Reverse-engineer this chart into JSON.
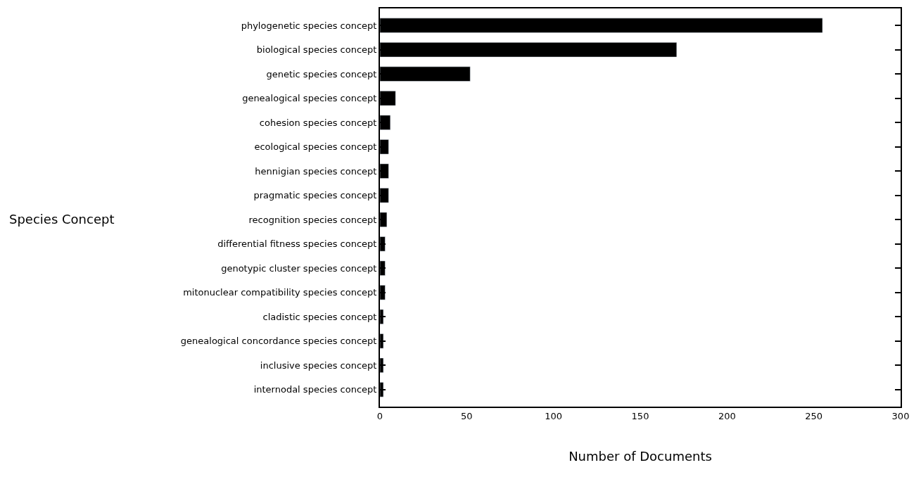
{
  "chart_data": {
    "type": "bar",
    "orientation": "horizontal",
    "xlabel": "Number of Documents",
    "annotations": [
      "Species Concept"
    ],
    "categories": [
      "phylogenetic species concept",
      "biological species concept",
      "genetic species concept",
      "genealogical species concept",
      "cohesion species concept",
      "ecological species concept",
      "hennigian species concept",
      "pragmatic species concept",
      "recognition species concept",
      "differential fitness species concept",
      "genotypic cluster species concept",
      "mitonuclear compatibility species concept",
      "cladistic species concept",
      "genealogical concordance species concept",
      "inclusive species concept",
      "internodal species concept"
    ],
    "values": [
      255,
      171,
      52,
      9,
      6,
      5,
      5,
      5,
      4,
      3,
      3,
      3,
      2,
      2,
      2,
      2
    ],
    "color": "#000000",
    "xlim": [
      0,
      300
    ],
    "xticks": [
      0,
      50,
      100,
      150,
      200,
      250,
      300
    ],
    "legend": false
  }
}
